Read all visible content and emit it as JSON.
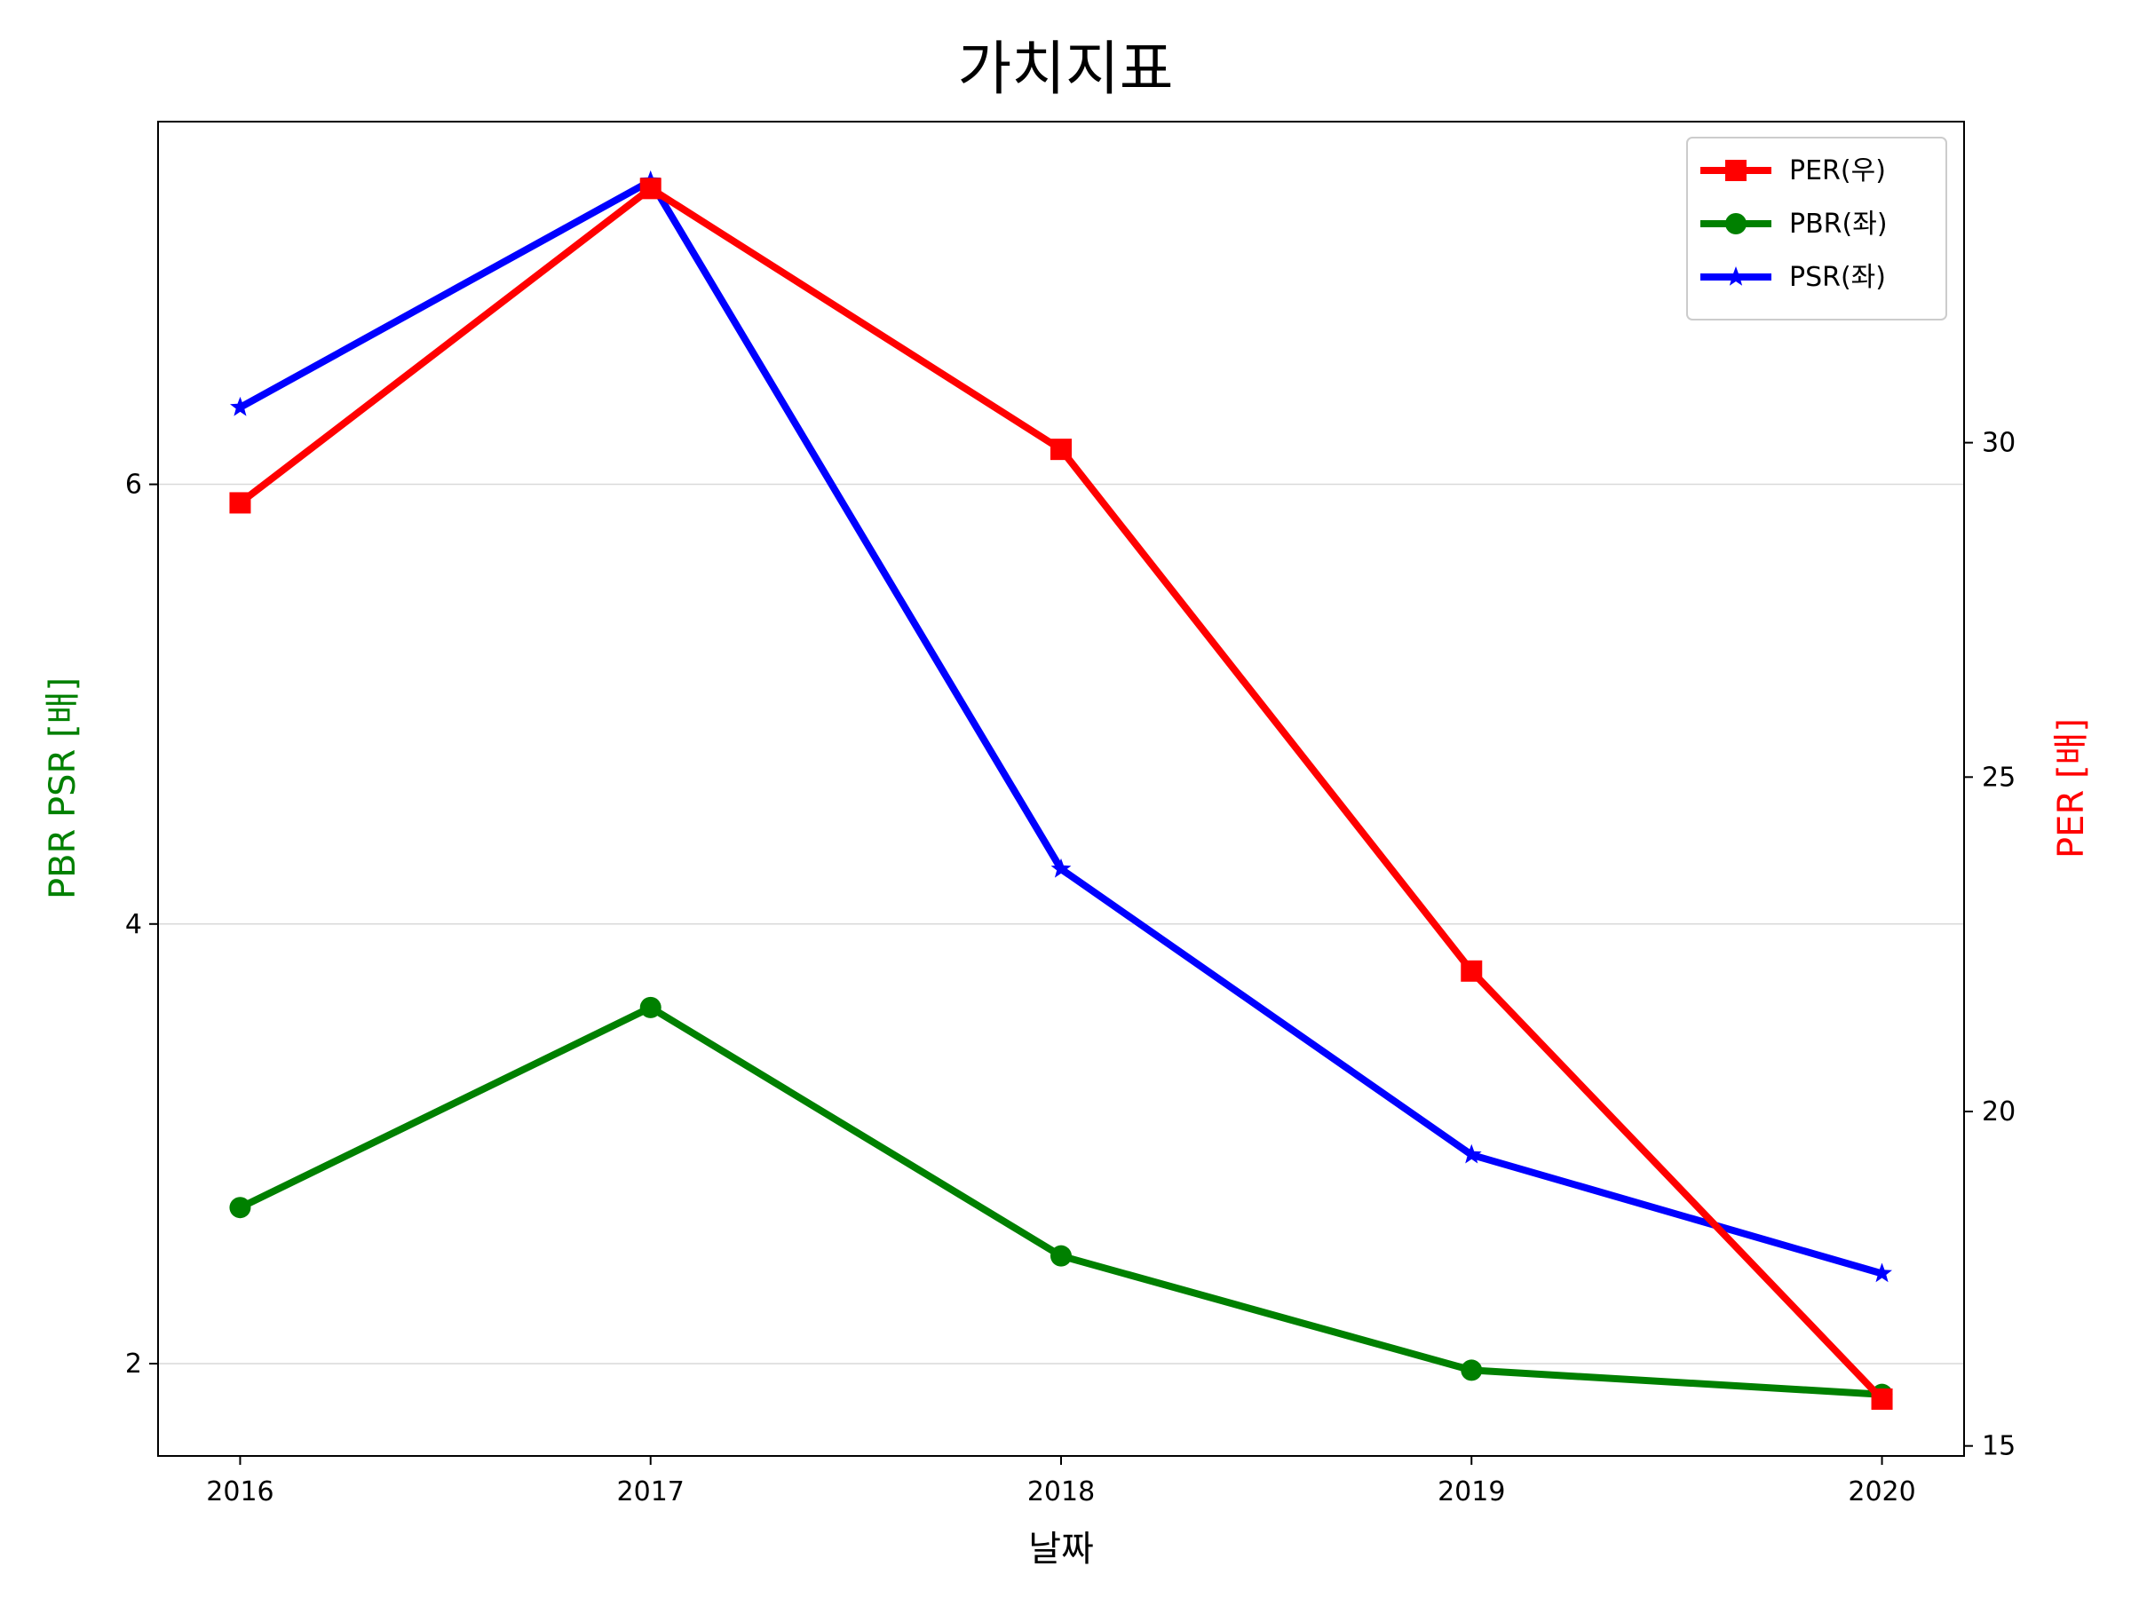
{
  "chart_data": {
    "type": "line",
    "title": "가치지표",
    "xlabel": "날짜",
    "ylabel_left": "PBR PSR [배]",
    "ylabel_right": "PER [배]",
    "ylabel_left_color": "#008000",
    "ylabel_right_color": "#ff0000",
    "x": [
      "2016",
      "2017",
      "2018",
      "2019",
      "2020"
    ],
    "xlim": [
      -0.2,
      4.2
    ],
    "ylim_left": [
      1.58,
      7.65
    ],
    "ylim_right": [
      14.85,
      34.8
    ],
    "yticks_left": [
      2,
      4,
      6
    ],
    "yticks_right": [
      15,
      20,
      25,
      30
    ],
    "grid": "horizontal-left",
    "legend_position": "upper-right",
    "series": [
      {
        "name": "PER(우)",
        "axis": "right",
        "color": "#ff0000",
        "marker": "square",
        "values": [
          29.1,
          33.8,
          29.9,
          22.1,
          15.7
        ]
      },
      {
        "name": "PBR(좌)",
        "axis": "left",
        "color": "#008000",
        "marker": "circle",
        "values": [
          2.71,
          3.62,
          2.49,
          1.97,
          1.86
        ]
      },
      {
        "name": "PSR(좌)",
        "axis": "left",
        "color": "#0000ff",
        "marker": "star",
        "values": [
          6.35,
          7.38,
          4.25,
          2.95,
          2.41
        ]
      }
    ]
  }
}
